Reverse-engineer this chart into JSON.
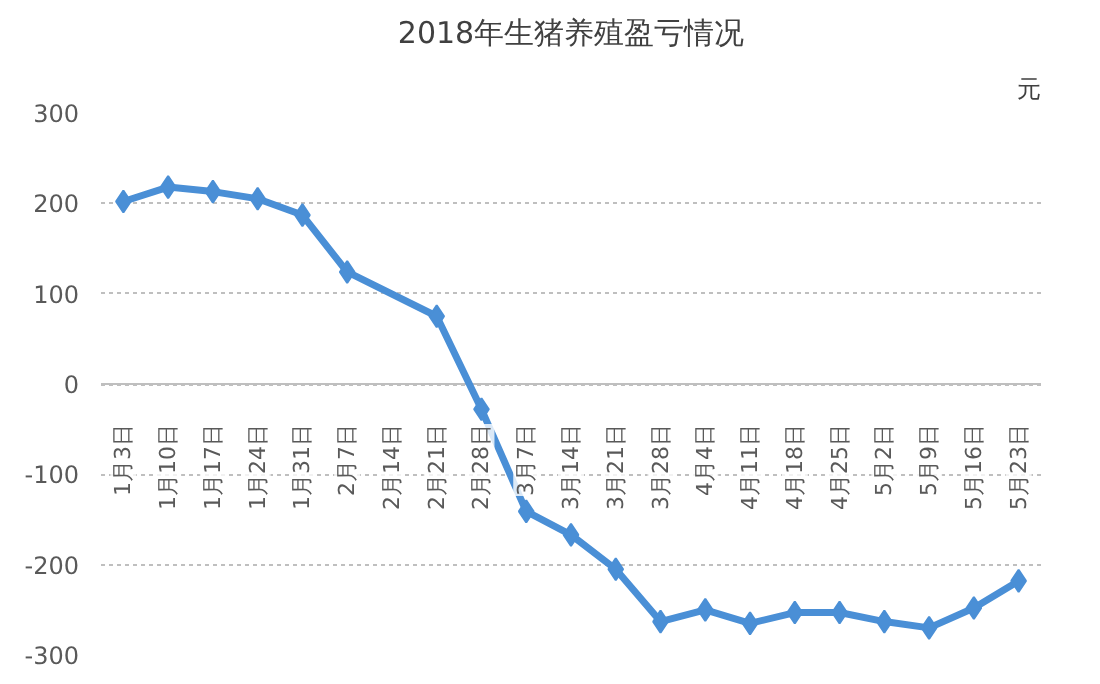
{
  "chart_data": {
    "type": "line",
    "title": "2018年生猪养殖盈亏情况",
    "ylabel": "元",
    "categories": [
      "1月3日",
      "1月10日",
      "1月17日",
      "1月24日",
      "1月31日",
      "2月7日",
      "2月14日",
      "2月21日",
      "2月28日",
      "3月7日",
      "3月14日",
      "3月21日",
      "3月28日",
      "4月4日",
      "4月11日",
      "4月18日",
      "4月25日",
      "5月2日",
      "5月9日",
      "5月16日",
      "5月23日"
    ],
    "series": [
      {
        "color": "#4a8fd6",
        "values": [
          202,
          218,
          213,
          205,
          187,
          124,
          null,
          75,
          -28,
          -141,
          -167,
          -205,
          -263,
          -250,
          -265,
          -253,
          -253,
          -263,
          -270,
          -248,
          -218
        ]
      }
    ],
    "ylim": [
      -300,
      300
    ],
    "yticks": [
      -300,
      -200,
      -100,
      0,
      100,
      200,
      300
    ],
    "grid": "y",
    "marker": "diamond",
    "line_style": "solid"
  }
}
